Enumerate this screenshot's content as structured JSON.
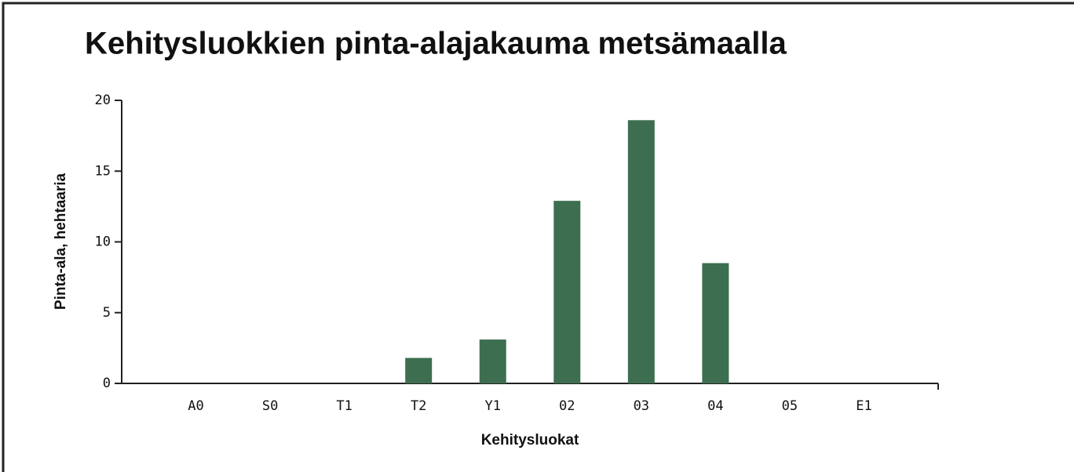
{
  "chart_data": {
    "type": "bar",
    "title": "Kehitysluokkien pinta-alajakauma metsämaalla",
    "x_label": "Kehitysluokat",
    "y_label": "Pinta-ala, hehtaaria",
    "categories": [
      "A0",
      "S0",
      "T1",
      "T2",
      "Y1",
      "02",
      "03",
      "04",
      "05",
      "E1"
    ],
    "values": [
      0,
      0,
      0,
      1.8,
      3.1,
      12.9,
      18.6,
      8.5,
      0,
      0
    ],
    "color": "#3d6e50",
    "ylim": [
      0,
      20
    ],
    "yticks": [
      0,
      5,
      10,
      15,
      20
    ],
    "grid": false
  }
}
